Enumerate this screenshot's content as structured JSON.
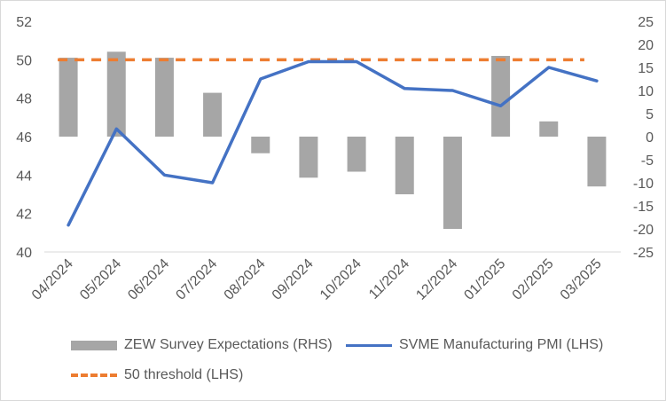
{
  "chart_data": {
    "type": "bar+line",
    "categories": [
      "04/2024",
      "05/2024",
      "06/2024",
      "07/2024",
      "08/2024",
      "09/2024",
      "10/2024",
      "11/2024",
      "12/2024",
      "01/2025",
      "02/2025",
      "03/2025"
    ],
    "series": [
      {
        "name": "ZEW Survey Expectations (RHS)",
        "kind": "bar",
        "axis": "right",
        "color": "#a6a6a6",
        "values": [
          17.1,
          18.4,
          17.1,
          9.5,
          -3.6,
          -8.9,
          -7.6,
          -12.5,
          -20.0,
          17.5,
          3.3,
          -10.8
        ]
      },
      {
        "name": "SVME Manufacturing PMI (LHS)",
        "kind": "line",
        "axis": "left",
        "color": "#4472c4",
        "values": [
          41.4,
          46.4,
          44.0,
          43.6,
          49.0,
          49.9,
          49.9,
          48.5,
          48.4,
          47.6,
          49.6,
          48.9
        ]
      },
      {
        "name": "50 threshold (LHS)",
        "kind": "dashed-line",
        "axis": "left",
        "color": "#ed7d31",
        "values": [
          50,
          50,
          50,
          50,
          50,
          50,
          50,
          50,
          50,
          50,
          50,
          50
        ]
      }
    ],
    "left_axis": {
      "min": 40,
      "max": 52,
      "step": 2,
      "ticks": [
        "40",
        "42",
        "44",
        "46",
        "48",
        "50",
        "52"
      ]
    },
    "right_axis": {
      "min": -25,
      "max": 25,
      "step": 5,
      "ticks": [
        "-25",
        "-20",
        "-15",
        "-10",
        "-5",
        "0",
        "5",
        "10",
        "15",
        "20",
        "25"
      ]
    },
    "title": "",
    "xlabel": "",
    "ylabel": "",
    "grid": false,
    "legend": [
      {
        "label": "ZEW Survey Expectations (RHS)",
        "swatch": "bar"
      },
      {
        "label": "SVME Manufacturing PMI (LHS)",
        "swatch": "line"
      },
      {
        "label": "50 threshold (LHS)",
        "swatch": "dash"
      }
    ]
  }
}
